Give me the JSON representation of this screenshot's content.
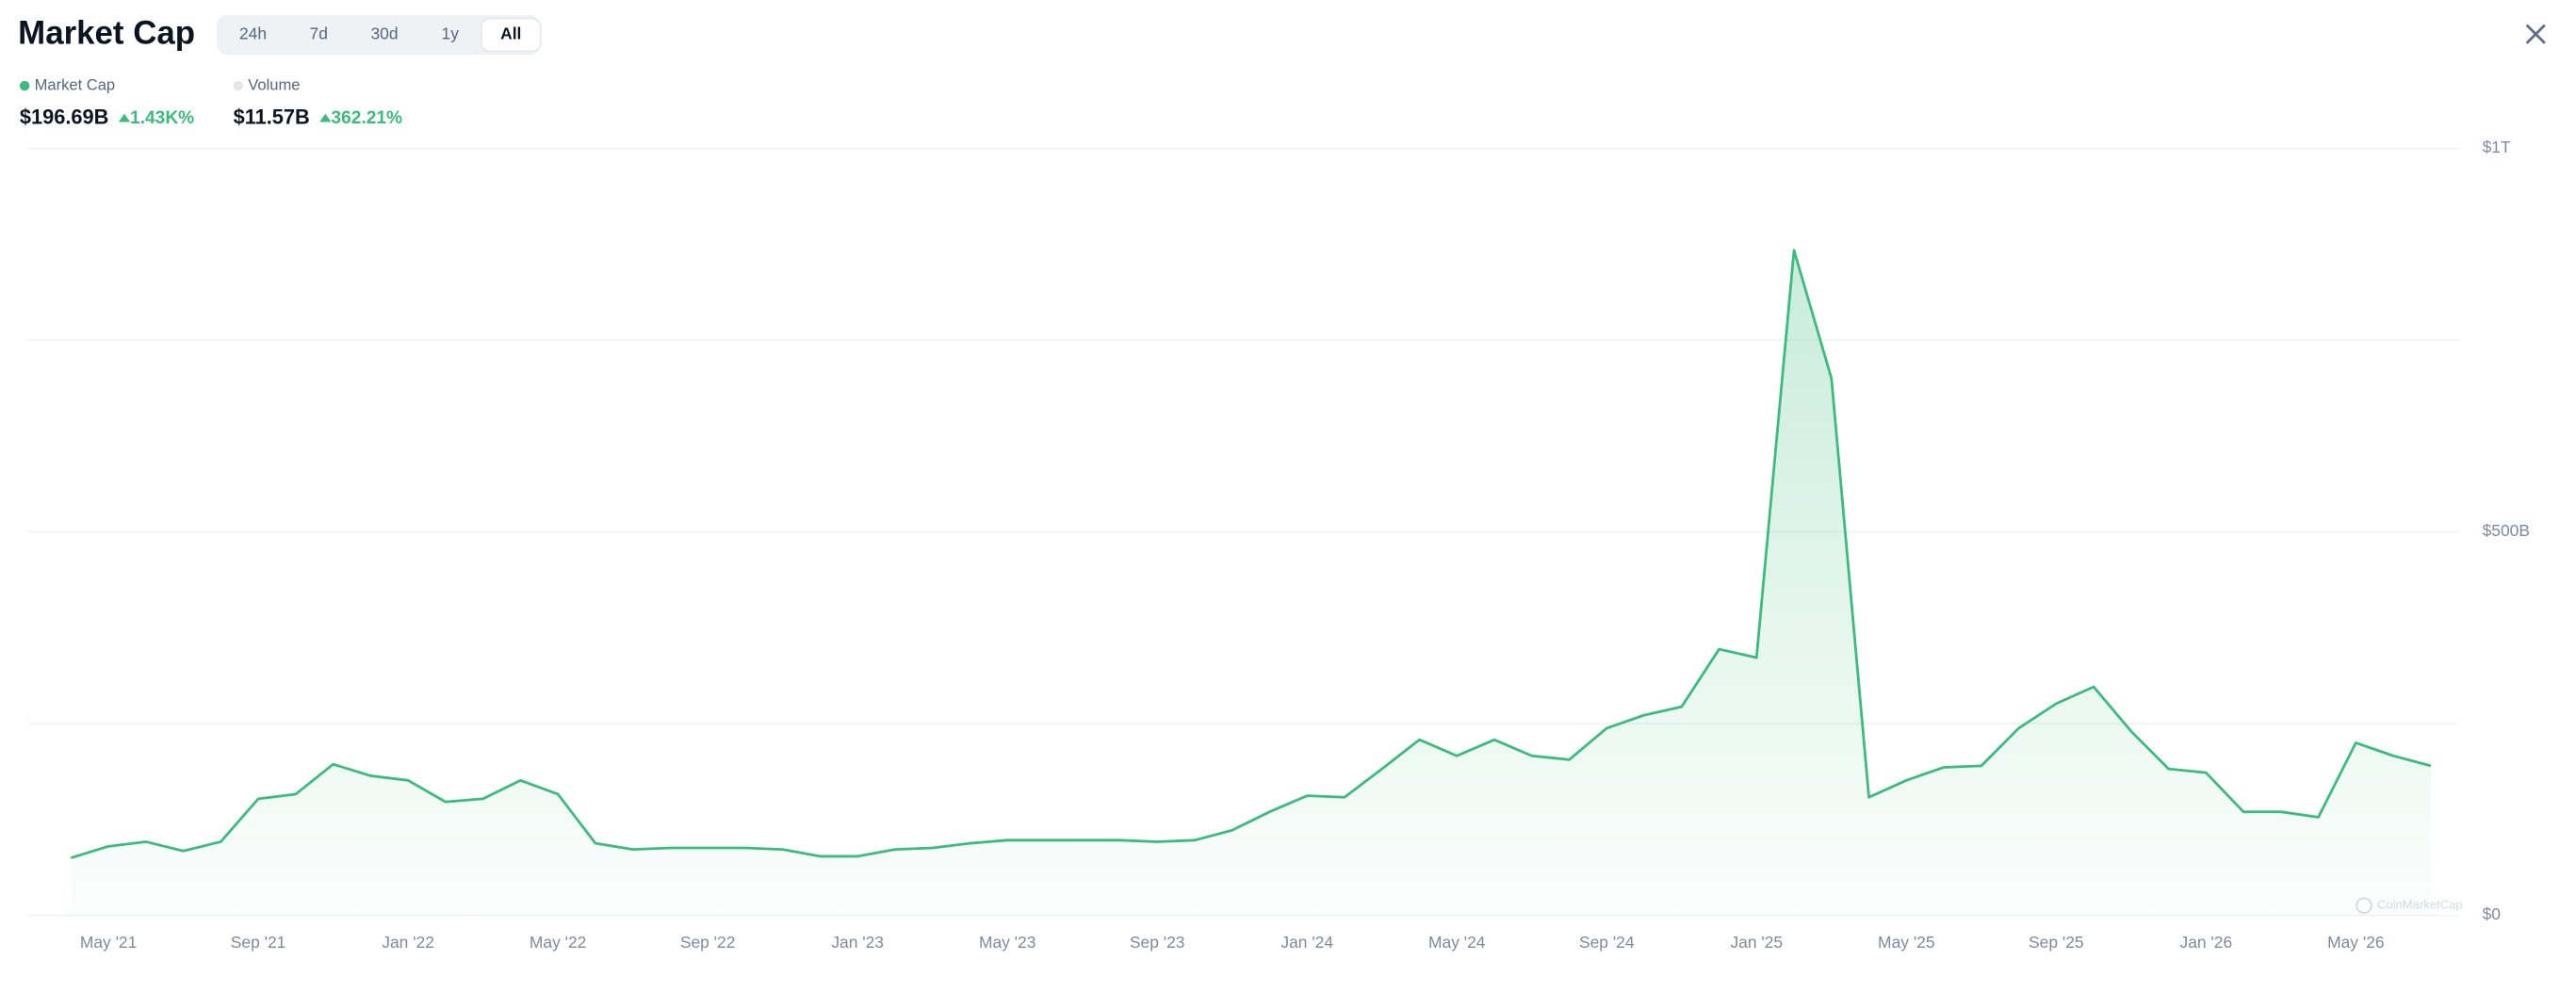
{
  "header": {
    "title": "Market Cap",
    "tabs": [
      {
        "label": "24h"
      },
      {
        "label": "7d"
      },
      {
        "label": "30d"
      },
      {
        "label": "1y"
      },
      {
        "label": "All",
        "active": true
      }
    ],
    "stats": [
      {
        "name": "Market Cap",
        "color": "#3dba7e",
        "value": "$196.69B",
        "change": "1.43K%"
      },
      {
        "name": "Volume",
        "color": "#e5e7eb",
        "value": "$11.57B",
        "change": "362.21%"
      }
    ]
  },
  "chart_data": {
    "type": "line",
    "watermark": "CoinMarketCap",
    "x": [
      "2021-04",
      "2021-05",
      "2021-06",
      "2021-07",
      "2021-08",
      "2021-09",
      "2021-10",
      "2021-11",
      "2021-12",
      "2022-01",
      "2022-02",
      "2022-03",
      "2022-04",
      "2022-05",
      "2022-06",
      "2022-07",
      "2022-08",
      "2022-09",
      "2022-10",
      "2022-11",
      "2022-12",
      "2023-01",
      "2023-02",
      "2023-03",
      "2023-04",
      "2023-05",
      "2023-06",
      "2023-07",
      "2023-08",
      "2023-09",
      "2023-10",
      "2023-11",
      "2023-12",
      "2024-01",
      "2024-02",
      "2024-03",
      "2024-04",
      "2024-05",
      "2024-06",
      "2024-07",
      "2024-08",
      "2024-09",
      "2024-10",
      "2024-11",
      "2024-12",
      "2025-01",
      "2025-02",
      "2025-03",
      "2025-04",
      "2025-05",
      "2025-06",
      "2025-07",
      "2025-08",
      "2025-09",
      "2025-10",
      "2025-11",
      "2025-12",
      "2026-01",
      "2026-02",
      "2026-03",
      "2026-04",
      "2026-05",
      "2026-06",
      "2026-07"
    ],
    "series": [
      {
        "name": "Market Cap",
        "color": "#3dba7e",
        "values": [
          75,
          90,
          96,
          84,
          96,
          152,
          158,
          197,
          182,
          176,
          148,
          152,
          176,
          158,
          94,
          86,
          88,
          88,
          88,
          86,
          77,
          77,
          86,
          88,
          94,
          98,
          98,
          98,
          98,
          96,
          98,
          111,
          135,
          156,
          154,
          191,
          229,
          208,
          229,
          208,
          203,
          244,
          261,
          272,
          347,
          336,
          867,
          700,
          154,
          176,
          193,
          195,
          244,
          276,
          298,
          240,
          191,
          186,
          135,
          135,
          128,
          225,
          208,
          195
        ]
      }
    ],
    "xlim": [
      "2021-03",
      "2026-07"
    ],
    "xticks": [
      {
        "value": "2021-05",
        "label": "May '21"
      },
      {
        "value": "2021-09",
        "label": "Sep '21"
      },
      {
        "value": "2022-01",
        "label": "Jan '22"
      },
      {
        "value": "2022-05",
        "label": "May '22"
      },
      {
        "value": "2022-09",
        "label": "Sep '22"
      },
      {
        "value": "2023-01",
        "label": "Jan '23"
      },
      {
        "value": "2023-05",
        "label": "May '23"
      },
      {
        "value": "2023-09",
        "label": "Sep '23"
      },
      {
        "value": "2024-01",
        "label": "Jan '24"
      },
      {
        "value": "2024-05",
        "label": "May '24"
      },
      {
        "value": "2024-09",
        "label": "Sep '24"
      },
      {
        "value": "2025-01",
        "label": "Jan '25"
      },
      {
        "value": "2025-05",
        "label": "May '25"
      },
      {
        "value": "2025-09",
        "label": "Sep '25"
      },
      {
        "value": "2026-01",
        "label": "Jan '26"
      },
      {
        "value": "2026-05",
        "label": "May '26"
      }
    ],
    "ylim": [
      0,
      1000
    ],
    "yticks": [
      {
        "value": 0,
        "label": "$0"
      },
      {
        "value": 500,
        "label": "$500B"
      },
      {
        "value": 1000,
        "label": "$1T"
      }
    ],
    "gridlines": [
      0,
      250,
      500,
      750,
      1000
    ],
    "grid": true
  }
}
